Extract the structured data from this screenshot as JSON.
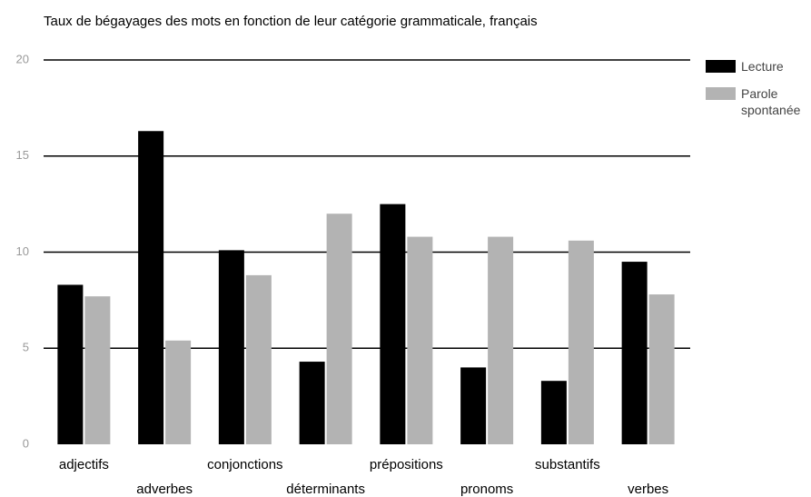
{
  "chart_data": {
    "type": "bar",
    "title": "Taux de bégayages des mots en fonction de leur catégorie grammaticale, français",
    "categories": [
      "adjectifs",
      "adverbes",
      "conjonctions",
      "déterminants",
      "prépositions",
      "pronoms",
      "substantifs",
      "verbes"
    ],
    "series": [
      {
        "name": "Lecture",
        "color": "#000000",
        "values": [
          8.3,
          16.3,
          10.1,
          4.3,
          12.5,
          4.0,
          3.3,
          9.5
        ]
      },
      {
        "name": "Parole spontanée",
        "color": "#b3b3b3",
        "values": [
          7.7,
          5.4,
          8.8,
          12.0,
          10.8,
          10.8,
          10.6,
          7.8
        ]
      }
    ],
    "ylim": [
      0,
      20
    ],
    "yticks": [
      0,
      5,
      10,
      15,
      20
    ],
    "grid": true,
    "legend": "right"
  }
}
